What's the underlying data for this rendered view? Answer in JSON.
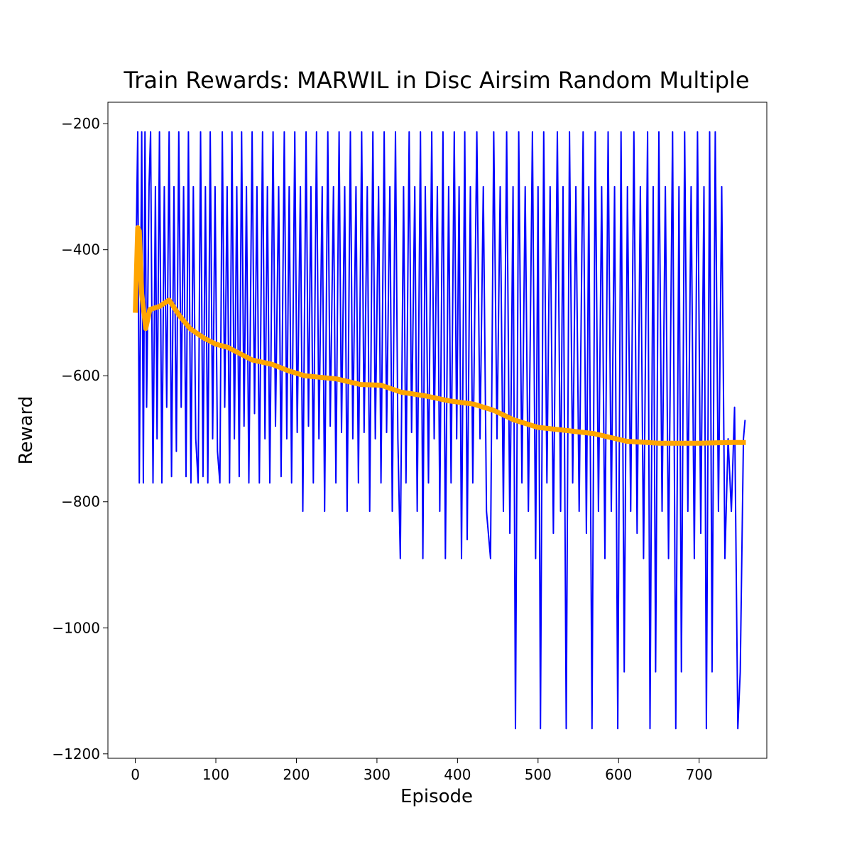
{
  "chart_data": {
    "type": "line",
    "title": "Train Rewards: MARWIL in Disc Airsim Random Multiple",
    "xlabel": "Episode",
    "ylabel": "Reward",
    "xlim": [
      -34,
      784
    ],
    "xticks": [
      0,
      100,
      200,
      300,
      400,
      500,
      600,
      700
    ],
    "ylim": [
      -1207,
      -166
    ],
    "yticks": [
      {
        "value": -1200,
        "label": "−1200"
      },
      {
        "value": -1000,
        "label": "−1000"
      },
      {
        "value": -800,
        "label": "−800"
      },
      {
        "value": -600,
        "label": "−600"
      },
      {
        "value": -400,
        "label": "−400"
      },
      {
        "value": -200,
        "label": "−200"
      }
    ],
    "grid": false,
    "series": [
      {
        "color": "#0000ff",
        "width": 2,
        "x": [
          0,
          3,
          5,
          8,
          10,
          12,
          14,
          17,
          19,
          22,
          25,
          27,
          30,
          33,
          36,
          39,
          42,
          45,
          48,
          51,
          54,
          57,
          60,
          63,
          66,
          69,
          72,
          75,
          78,
          81,
          84,
          87,
          90,
          93,
          96,
          99,
          102,
          105,
          108,
          111,
          114,
          117,
          120,
          123,
          126,
          129,
          132,
          135,
          138,
          141,
          145,
          148,
          151,
          154,
          158,
          161,
          164,
          167,
          171,
          174,
          178,
          181,
          185,
          188,
          191,
          194,
          198,
          201,
          205,
          208,
          212,
          215,
          218,
          221,
          225,
          228,
          232,
          235,
          239,
          242,
          246,
          249,
          253,
          256,
          260,
          263,
          267,
          270,
          274,
          277,
          281,
          284,
          288,
          291,
          295,
          298,
          302,
          305,
          309,
          312,
          316,
          319,
          323,
          326,
          329,
          333,
          336,
          340,
          343,
          347,
          350,
          354,
          357,
          360,
          364,
          368,
          371,
          375,
          378,
          382,
          385,
          389,
          392,
          396,
          399,
          402,
          405,
          409,
          412,
          416,
          419,
          424,
          428,
          432,
          436,
          441,
          445,
          449,
          453,
          457,
          461,
          465,
          469,
          472,
          476,
          480,
          484,
          488,
          493,
          497,
          500,
          503,
          507,
          511,
          515,
          519,
          524,
          528,
          531,
          535,
          539,
          543,
          547,
          551,
          556,
          560,
          563,
          567,
          571,
          575,
          579,
          583,
          587,
          591,
          595,
          599,
          603,
          607,
          611,
          615,
          619,
          623,
          627,
          631,
          636,
          639,
          643,
          646,
          650,
          654,
          658,
          662,
          667,
          671,
          675,
          678,
          682,
          686,
          690,
          694,
          698,
          702,
          706,
          709,
          713,
          716,
          720,
          724,
          728,
          732,
          736,
          740,
          744,
          748,
          751,
          755,
          757
        ],
        "values": [
          -500,
          -213,
          -770,
          -213,
          -770,
          -213,
          -650,
          -300,
          -213,
          -770,
          -300,
          -700,
          -213,
          -770,
          -300,
          -650,
          -213,
          -760,
          -300,
          -720,
          -213,
          -650,
          -300,
          -760,
          -213,
          -770,
          -300,
          -700,
          -770,
          -213,
          -760,
          -300,
          -770,
          -213,
          -700,
          -300,
          -720,
          -770,
          -213,
          -650,
          -300,
          -770,
          -213,
          -700,
          -300,
          -760,
          -213,
          -680,
          -300,
          -770,
          -213,
          -660,
          -300,
          -770,
          -213,
          -700,
          -300,
          -770,
          -213,
          -680,
          -300,
          -760,
          -213,
          -700,
          -300,
          -770,
          -213,
          -690,
          -300,
          -815,
          -213,
          -680,
          -300,
          -770,
          -213,
          -700,
          -300,
          -815,
          -213,
          -680,
          -300,
          -770,
          -213,
          -690,
          -300,
          -815,
          -213,
          -700,
          -300,
          -770,
          -213,
          -690,
          -300,
          -815,
          -213,
          -700,
          -300,
          -770,
          -213,
          -690,
          -300,
          -815,
          -213,
          -700,
          -890,
          -300,
          -770,
          -213,
          -690,
          -300,
          -815,
          -213,
          -890,
          -300,
          -770,
          -213,
          -700,
          -300,
          -815,
          -213,
          -890,
          -300,
          -770,
          -213,
          -700,
          -300,
          -890,
          -213,
          -860,
          -300,
          -770,
          -213,
          -700,
          -300,
          -815,
          -890,
          -213,
          -700,
          -300,
          -815,
          -213,
          -850,
          -300,
          -1160,
          -213,
          -770,
          -300,
          -815,
          -213,
          -890,
          -300,
          -1160,
          -213,
          -770,
          -300,
          -850,
          -213,
          -815,
          -300,
          -1160,
          -213,
          -770,
          -300,
          -815,
          -213,
          -850,
          -300,
          -1160,
          -213,
          -815,
          -300,
          -890,
          -213,
          -815,
          -300,
          -1160,
          -213,
          -1070,
          -300,
          -815,
          -213,
          -850,
          -300,
          -890,
          -213,
          -1160,
          -300,
          -1070,
          -213,
          -815,
          -300,
          -890,
          -213,
          -1160,
          -300,
          -1070,
          -213,
          -815,
          -300,
          -890,
          -213,
          -850,
          -300,
          -1160,
          -213,
          -1070,
          -213,
          -815,
          -300,
          -890,
          -700,
          -815,
          -650,
          -1160,
          -1070,
          -700,
          -670
        ]
      },
      {
        "color": "#ffa500",
        "width": 7,
        "x": [
          0,
          3,
          5,
          8,
          13,
          18,
          30,
          42,
          55,
          68,
          85,
          100,
          115,
          130,
          145,
          170,
          190,
          210,
          250,
          280,
          305,
          330,
          360,
          390,
          420,
          445,
          470,
          500,
          530,
          570,
          610,
          650,
          700,
          740,
          758
        ],
        "values": [
          -500,
          -365,
          -370,
          -470,
          -525,
          -495,
          -490,
          -480,
          -505,
          -525,
          -540,
          -550,
          -555,
          -565,
          -575,
          -582,
          -592,
          -600,
          -605,
          -614,
          -615,
          -626,
          -632,
          -640,
          -645,
          -655,
          -670,
          -682,
          -686,
          -692,
          -704,
          -707,
          -707,
          -706,
          -706
        ]
      }
    ]
  }
}
